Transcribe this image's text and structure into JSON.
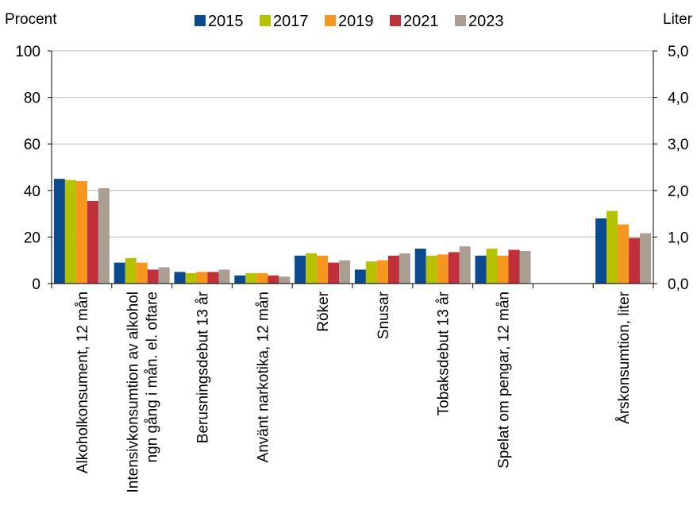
{
  "chart_data": {
    "type": "bar",
    "left_axis_label": "Procent",
    "right_axis_label": "Liter",
    "categories": [
      "Alkoholkonsument, 12 mån",
      "Intensivkonsumtion av alkohol ngn gång i mån. el. oftare",
      "Berusningsdebut 13 år",
      "Använt narkotika, 12 mån",
      "Röker",
      "Snusar",
      "Tobaksdebut 13 år",
      "Spelat om pengar, 12 mån",
      "",
      "Årskonsumtion, liter"
    ],
    "category_lines": [
      [
        "Alkoholkonsument, 12 mån"
      ],
      [
        "Intensivkonsumtion av alkohol",
        "ngn gång i mån. el. oftare"
      ],
      [
        "Berusningsdebut 13 år"
      ],
      [
        "Använt narkotika, 12 mån"
      ],
      [
        "Röker"
      ],
      [
        "Snusar"
      ],
      [
        "Tobaksdebut 13 år"
      ],
      [
        "Spelat om pengar, 12 mån"
      ],
      [],
      [
        "Årskonsumtion, liter"
      ]
    ],
    "series": [
      {
        "name": "2015",
        "color": "#0b4a8f",
        "values": [
          45,
          9,
          5,
          3.5,
          12,
          6,
          15,
          12,
          null,
          1.4
        ]
      },
      {
        "name": "2017",
        "color": "#b5c200",
        "values": [
          44.5,
          11,
          4.5,
          4.5,
          13,
          9.5,
          12,
          15,
          null,
          1.56
        ]
      },
      {
        "name": "2019",
        "color": "#f5961e",
        "values": [
          44,
          9,
          5,
          4.5,
          12,
          10,
          12.5,
          12,
          null,
          1.27
        ]
      },
      {
        "name": "2021",
        "color": "#c0303a",
        "values": [
          35.5,
          6,
          5,
          3.5,
          9,
          12,
          13.5,
          14.5,
          null,
          0.98
        ]
      },
      {
        "name": "2023",
        "color": "#ab9f94",
        "values": [
          41,
          7,
          6,
          3,
          10,
          13,
          16,
          14,
          null,
          1.08
        ]
      }
    ],
    "secondary_axis_categories": [
      "Årskonsumtion, liter"
    ],
    "ylim_left": [
      0,
      100
    ],
    "yticks_left": [
      "0",
      "20",
      "40",
      "60",
      "80",
      "100"
    ],
    "ylim_right": [
      0,
      5
    ],
    "yticks_right": [
      "0,0",
      "1,0",
      "2,0",
      "3,0",
      "4,0",
      "5,0"
    ],
    "grid": true,
    "legend_position": "top-center"
  }
}
